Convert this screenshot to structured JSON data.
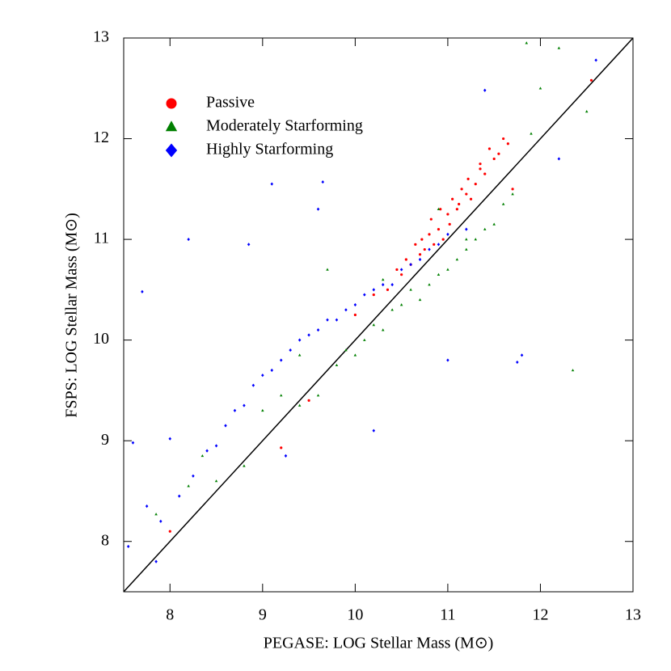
{
  "chart_data": {
    "type": "scatter",
    "xlabel": "PEGASE: LOG Stellar Mass (M⊙)",
    "ylabel": "FSPS: LOG Stellar Mass (M⊙)",
    "xlim": [
      7.5,
      13
    ],
    "ylim": [
      7.5,
      13
    ],
    "xticks": [
      8,
      9,
      10,
      11,
      12,
      13
    ],
    "yticks": [
      8,
      9,
      10,
      11,
      12,
      13
    ],
    "legend": "upper left",
    "lines": [
      {
        "x": [
          7.5,
          13
        ],
        "y": [
          7.5,
          13
        ],
        "color": "#000000"
      }
    ],
    "series": [
      {
        "name": "Passive",
        "color": "#ff0000",
        "marker": "circle",
        "x": [
          10.2,
          10.35,
          10.45,
          10.5,
          10.55,
          10.6,
          10.65,
          10.7,
          10.72,
          10.75,
          10.8,
          10.82,
          10.85,
          10.9,
          10.92,
          10.95,
          11.0,
          11.02,
          11.05,
          11.1,
          11.12,
          11.15,
          11.2,
          11.22,
          11.25,
          11.3,
          11.35,
          11.4,
          11.45,
          11.5,
          11.55,
          11.6,
          11.65,
          11.7,
          9.5,
          9.2,
          8.0,
          12.55,
          10.0,
          11.35
        ],
        "values": [
          10.45,
          10.5,
          10.7,
          10.65,
          10.8,
          10.75,
          10.95,
          10.85,
          11.0,
          10.9,
          11.05,
          11.2,
          10.95,
          11.1,
          11.3,
          11.0,
          11.25,
          11.15,
          11.4,
          11.3,
          11.35,
          11.5,
          11.45,
          11.6,
          11.4,
          11.55,
          11.7,
          11.65,
          11.9,
          11.8,
          11.85,
          12.0,
          11.95,
          11.5,
          9.4,
          8.93,
          8.1,
          12.58,
          10.25,
          11.75
        ]
      },
      {
        "name": "Moderately Starforming",
        "color": "#008000",
        "marker": "triangle",
        "x": [
          8.2,
          8.35,
          8.5,
          8.8,
          9.0,
          9.2,
          9.4,
          9.6,
          9.8,
          9.9,
          10.0,
          10.1,
          10.2,
          10.3,
          10.4,
          10.5,
          10.6,
          10.7,
          10.8,
          10.9,
          11.0,
          11.1,
          11.2,
          11.3,
          11.4,
          11.5,
          11.6,
          11.7,
          11.85,
          12.0,
          12.2,
          12.5,
          12.35,
          11.9,
          10.9,
          10.3,
          9.7,
          9.4,
          7.85,
          11.2
        ],
        "values": [
          8.55,
          8.85,
          8.6,
          8.75,
          9.3,
          9.45,
          9.35,
          9.45,
          9.75,
          9.9,
          9.85,
          10.0,
          10.15,
          10.1,
          10.3,
          10.35,
          10.5,
          10.4,
          10.55,
          10.65,
          10.7,
          10.8,
          10.9,
          11.0,
          11.1,
          11.15,
          11.35,
          11.45,
          12.95,
          12.5,
          12.9,
          12.27,
          9.7,
          12.05,
          11.3,
          10.6,
          10.7,
          9.85,
          8.27,
          11.0
        ]
      },
      {
        "name": "Highly Starforming",
        "color": "#0000ff",
        "marker": "diamond",
        "x": [
          7.55,
          7.6,
          7.75,
          7.85,
          7.9,
          8.0,
          8.1,
          8.25,
          8.4,
          8.5,
          8.6,
          8.7,
          8.8,
          8.9,
          9.0,
          9.1,
          9.2,
          9.3,
          9.4,
          9.5,
          9.6,
          9.7,
          9.8,
          9.9,
          10.0,
          10.1,
          10.2,
          10.3,
          10.4,
          10.5,
          10.6,
          10.7,
          10.8,
          10.9,
          11.0,
          11.2,
          11.4,
          12.6,
          12.2,
          11.8,
          11.75,
          11.0,
          10.2,
          9.1,
          8.2,
          7.7,
          9.6,
          9.65,
          8.85,
          9.25
        ],
        "values": [
          7.95,
          8.98,
          8.35,
          7.8,
          8.2,
          9.02,
          8.45,
          8.65,
          8.9,
          8.95,
          9.15,
          9.3,
          9.35,
          9.55,
          9.65,
          9.7,
          9.8,
          9.9,
          10.0,
          10.05,
          10.1,
          10.2,
          10.2,
          10.3,
          10.35,
          10.45,
          10.5,
          10.55,
          10.55,
          10.7,
          10.75,
          10.8,
          10.9,
          10.95,
          11.05,
          11.1,
          12.48,
          12.78,
          11.8,
          9.85,
          9.78,
          9.8,
          9.1,
          11.55,
          11.0,
          10.48,
          11.3,
          11.57,
          10.95,
          8.85
        ]
      }
    ]
  }
}
